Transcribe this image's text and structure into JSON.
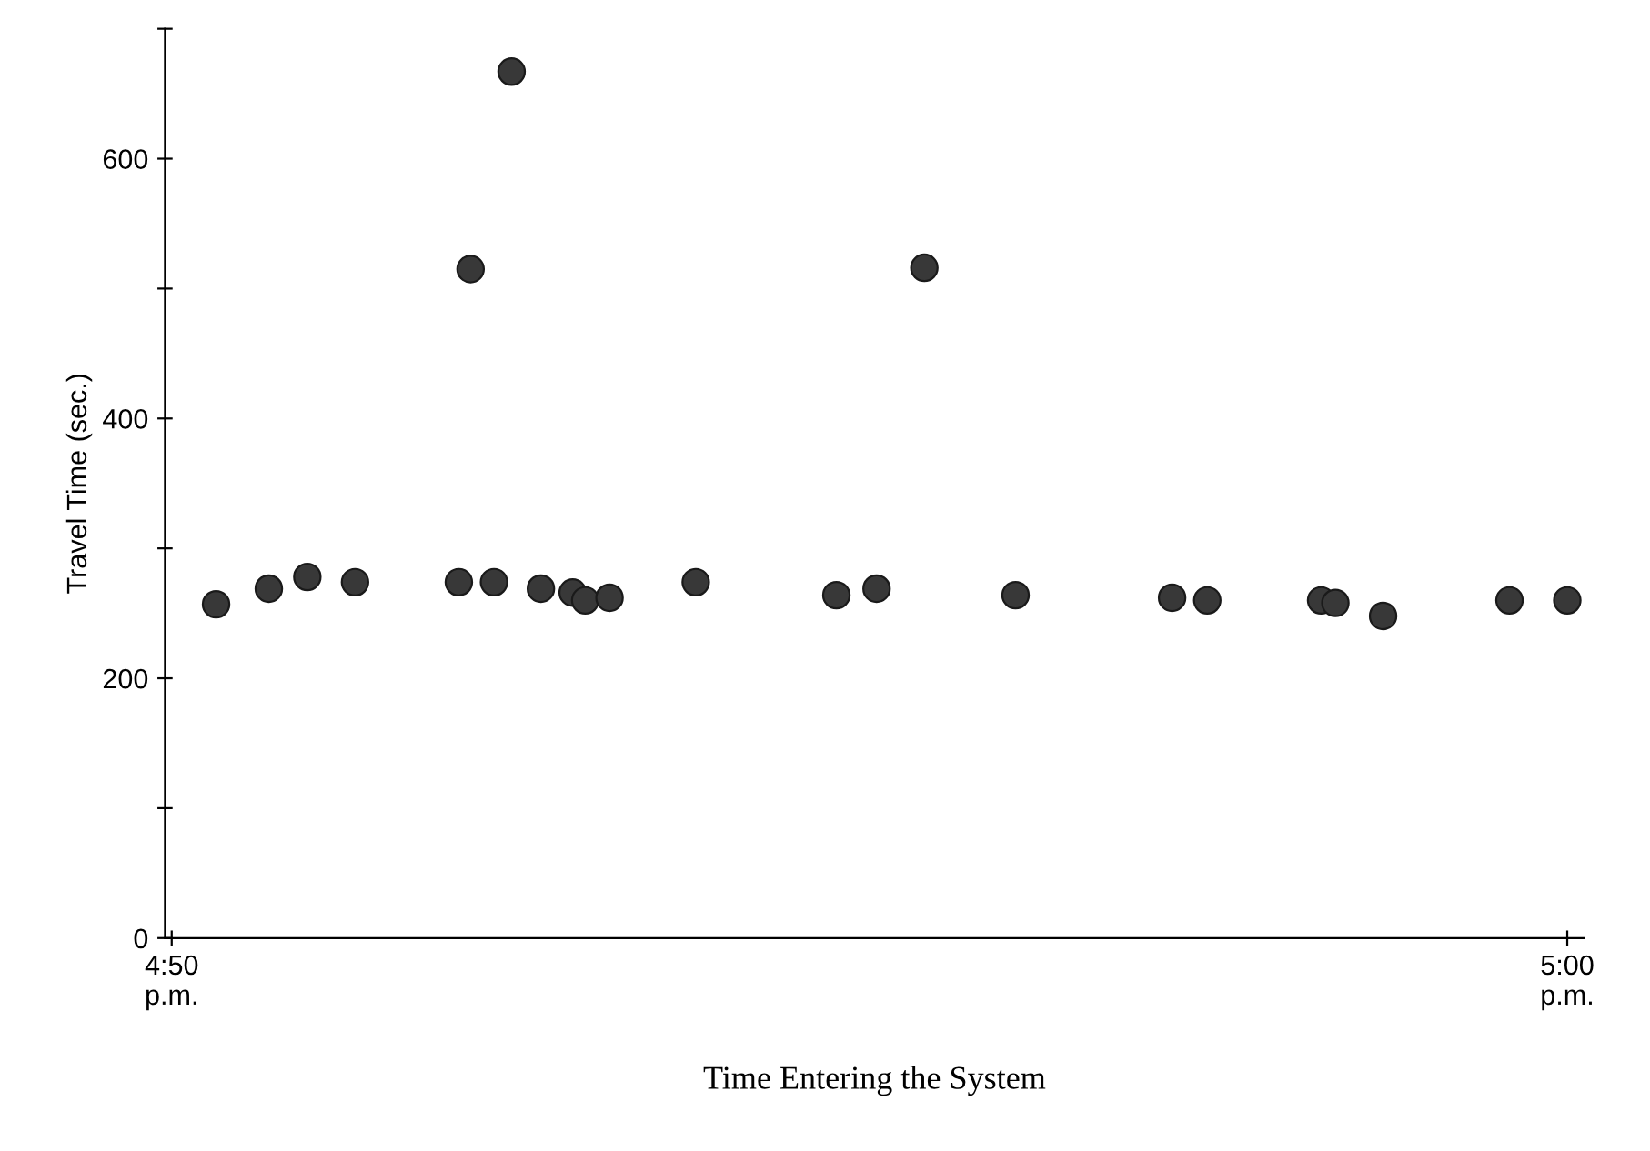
{
  "chart_data": {
    "type": "scatter",
    "xlabel": "Time Entering the System",
    "ylabel": "Travel Time (sec.)",
    "x": [
      16.8386,
      16.8449,
      16.8495,
      16.8552,
      16.8676,
      16.869,
      16.8718,
      16.8739,
      16.8774,
      16.8812,
      16.8827,
      16.8856,
      16.8959,
      16.9127,
      16.9175,
      16.9232,
      16.9341,
      16.9528,
      16.957,
      16.9706,
      16.9723,
      16.978,
      16.9931,
      17.0
    ],
    "series": [
      {
        "color": "#383838",
        "values": [
          257,
          269,
          278,
          274,
          274,
          515,
          274,
          667,
          269,
          266,
          260,
          262,
          274,
          264,
          269,
          516,
          264,
          262,
          260,
          260,
          258,
          248,
          260,
          260
        ]
      }
    ],
    "xlim": [
      16.8325,
      17.002
    ],
    "xticks": [
      {
        "value": 16.8333,
        "label": "4:50\np.m."
      },
      {
        "value": 17.0,
        "label": "5:00\np.m."
      }
    ],
    "ylim": [
      0,
      700
    ],
    "yticks": [
      0,
      {
        "value": 100,
        "label": null
      },
      200,
      {
        "value": 300,
        "label": null
      },
      400,
      {
        "value": 500,
        "label": null
      },
      600,
      {
        "value": 700,
        "label": null
      }
    ],
    "grid": false,
    "marker": "circle"
  }
}
